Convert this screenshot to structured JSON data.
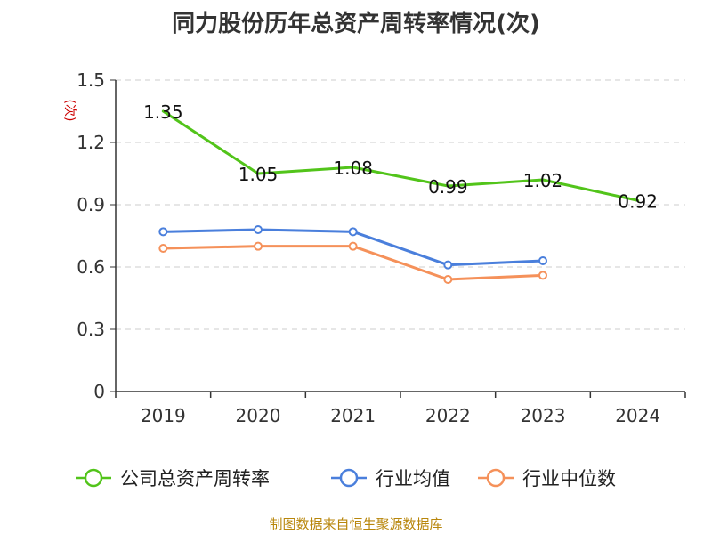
{
  "title": "同力股份历年总资产周转率情况(次)",
  "source": "制图数据来自恒生聚源数据库",
  "colors": {
    "company": "#52c41a",
    "industry_avg": "#4a7fdc",
    "industry_median": "#f5915a",
    "axis": "#333333",
    "grid": "#cccccc",
    "ylabel": "#cc0000",
    "source": "#b8860b"
  },
  "chart_data": {
    "type": "line",
    "title": "同力股份历年总资产周转率情况(次)",
    "ylabel": "(次)",
    "xlabel": "",
    "categories": [
      "2019",
      "2020",
      "2021",
      "2022",
      "2023",
      "2024"
    ],
    "ylim": [
      0,
      1.5
    ],
    "yticks": [
      "0",
      "0.3",
      "0.6",
      "0.9",
      "1.2",
      "1.5"
    ],
    "yticks_values": [
      0,
      0.3,
      0.6,
      0.9,
      1.2,
      1.5
    ],
    "grid": true,
    "legend_position": "bottom",
    "series": [
      {
        "name": "公司总资产周转率",
        "values": [
          1.35,
          1.05,
          1.08,
          0.99,
          1.02,
          0.92
        ],
        "labels": [
          "1.35",
          "1.05",
          "1.08",
          "0.99",
          "1.02",
          "0.92"
        ],
        "color_key": "company",
        "show_markers": false
      },
      {
        "name": "行业均值",
        "values": [
          0.77,
          0.78,
          0.77,
          0.61,
          0.63,
          null
        ],
        "color_key": "industry_avg",
        "show_markers": true
      },
      {
        "name": "行业中位数",
        "values": [
          0.69,
          0.7,
          0.7,
          0.54,
          0.56,
          null
        ],
        "color_key": "industry_median",
        "show_markers": true
      }
    ]
  }
}
